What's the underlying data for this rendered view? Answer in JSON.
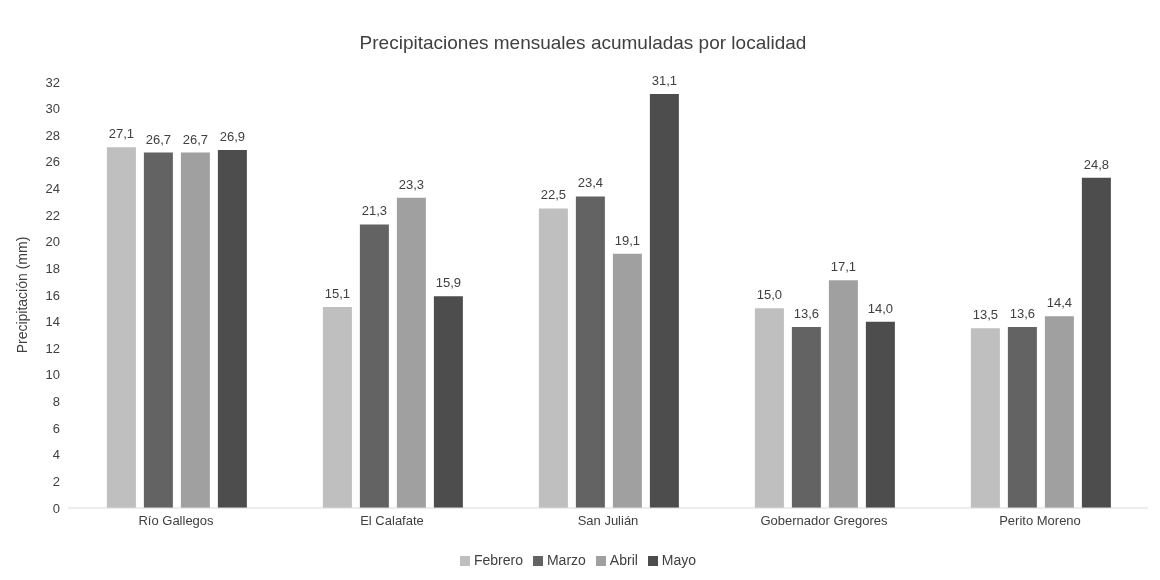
{
  "chart_data": {
    "type": "bar",
    "title": "Precipitaciones mensuales acumuladas por localidad",
    "ylabel": "Precipitación (mm)",
    "categories": [
      "Río Gallegos",
      "El Calafate",
      "San Julián",
      "Gobernador Gregores",
      "Perito Moreno"
    ],
    "series": [
      {
        "name": "Febrero",
        "color": "#bfbfbf",
        "values": [
          27.1,
          15.1,
          22.5,
          15.0,
          13.5
        ],
        "value_labels": [
          "27,1",
          "15,1",
          "22,5",
          "15,0",
          "13,5"
        ]
      },
      {
        "name": "Marzo",
        "color": "#636363",
        "values": [
          26.7,
          21.3,
          23.4,
          13.6,
          13.6
        ],
        "value_labels": [
          "26,7",
          "21,3",
          "23,4",
          "13,6",
          "13,6"
        ]
      },
      {
        "name": "Abril",
        "color": "#a0a0a0",
        "values": [
          26.7,
          23.3,
          19.1,
          17.1,
          14.4
        ],
        "value_labels": [
          "26,7",
          "23,3",
          "19,1",
          "17,1",
          "14,4"
        ]
      },
      {
        "name": "Mayo",
        "color": "#4d4d4d",
        "values": [
          26.9,
          15.9,
          31.1,
          14.0,
          24.8
        ],
        "value_labels": [
          "26,9",
          "15,9",
          "31,1",
          "14,0",
          "24,8"
        ]
      }
    ],
    "ylim": [
      0,
      32
    ],
    "yticks": [
      0,
      2,
      4,
      6,
      8,
      10,
      12,
      14,
      16,
      18,
      20,
      22,
      24,
      26,
      28,
      30,
      32
    ],
    "grid": false,
    "legend": "bottom"
  }
}
